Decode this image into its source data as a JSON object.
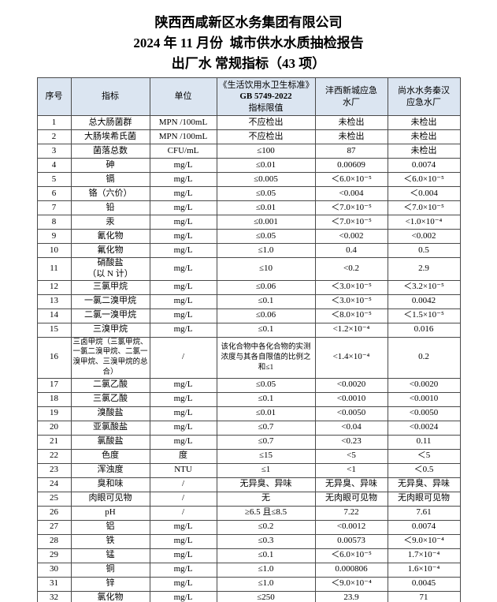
{
  "title": {
    "line1": "陕西西咸新区水务集团有限公司",
    "line2": "2024 年 11 月份  城市供水水质抽检报告",
    "line3": "出厂水 常规指标（43 项）"
  },
  "table": {
    "headers": {
      "no": "序号",
      "indicator": "指标",
      "unit": "单位",
      "limit_part1": "《生活饮用水卫生标准》",
      "limit_part2": "GB 5749-2022",
      "limit_part3": "指标限值",
      "plant1": "沣西新城应急\n水厂",
      "plant2": "尚水水务秦汉\n应急水厂"
    },
    "rows": [
      {
        "no": "1",
        "indicator": "总大肠菌群",
        "unit": "MPN /100mL",
        "limit": "不应检出",
        "v1": "未检出",
        "v2": "未检出"
      },
      {
        "no": "2",
        "indicator": "大肠埃希氏菌",
        "unit": "MPN /100mL",
        "limit": "不应检出",
        "v1": "未检出",
        "v2": "未检出"
      },
      {
        "no": "3",
        "indicator": "菌落总数",
        "unit": "CFU/mL",
        "limit": "≤100",
        "v1": "87",
        "v2": "未检出"
      },
      {
        "no": "4",
        "indicator": "砷",
        "unit": "mg/L",
        "limit": "≤0.01",
        "v1": "0.00609",
        "v2": "0.0074"
      },
      {
        "no": "5",
        "indicator": "镉",
        "unit": "mg/L",
        "limit": "≤0.005",
        "v1": "＜6.0×10⁻⁵",
        "v2": "＜6.0×10⁻⁵"
      },
      {
        "no": "6",
        "indicator": "铬（六价）",
        "unit": "mg/L",
        "limit": "≤0.05",
        "v1": "<0.004",
        "v2": "＜0.004"
      },
      {
        "no": "7",
        "indicator": "铅",
        "unit": "mg/L",
        "limit": "≤0.01",
        "v1": "＜7.0×10⁻⁵",
        "v2": "＜7.0×10⁻⁵"
      },
      {
        "no": "8",
        "indicator": "汞",
        "unit": "mg/L",
        "limit": "≤0.001",
        "v1": "＜7.0×10⁻⁵",
        "v2": "<1.0×10⁻⁴"
      },
      {
        "no": "9",
        "indicator": "氰化物",
        "unit": "mg/L",
        "limit": "≤0.05",
        "v1": "<0.002",
        "v2": "<0.002"
      },
      {
        "no": "10",
        "indicator": "氟化物",
        "unit": "mg/L",
        "limit": "≤1.0",
        "v1": "0.4",
        "v2": "0.5"
      },
      {
        "no": "11",
        "indicator": "硝酸盐\n（以 N 计）",
        "unit": "mg/L",
        "limit": "≤10",
        "v1": "<0.2",
        "v2": "2.9"
      },
      {
        "no": "12",
        "indicator": "三氯甲烷",
        "unit": "mg/L",
        "limit": "≤0.06",
        "v1": "＜3.0×10⁻⁵",
        "v2": "＜3.2×10⁻⁵"
      },
      {
        "no": "13",
        "indicator": "一氯二溴甲烷",
        "unit": "mg/L",
        "limit": "≤0.1",
        "v1": "＜3.0×10⁻⁵",
        "v2": "0.0042"
      },
      {
        "no": "14",
        "indicator": "二氯一溴甲烷",
        "unit": "mg/L",
        "limit": "≤0.06",
        "v1": "＜8.0×10⁻⁵",
        "v2": "＜1.5×10⁻⁵"
      },
      {
        "no": "15",
        "indicator": "三溴甲烷",
        "unit": "mg/L",
        "limit": "≤0.1",
        "v1": "<1.2×10⁻⁴",
        "v2": "0.016"
      },
      {
        "no": "16",
        "indicator": "三卤甲烷（三氯甲烷、一氯二溴甲烷、二氯一溴甲烷、三溴甲烷的总合）",
        "unit": "/",
        "limit": "该化合物中各化合物的实测浓度与其各自限值的比例之和≤1",
        "v1": "<1.4×10⁻⁴",
        "v2": "0.2"
      },
      {
        "no": "17",
        "indicator": "二氯乙酸",
        "unit": "mg/L",
        "limit": "≤0.05",
        "v1": "<0.0020",
        "v2": "<0.0020"
      },
      {
        "no": "18",
        "indicator": "三氯乙酸",
        "unit": "mg/L",
        "limit": "≤0.1",
        "v1": "<0.0010",
        "v2": "<0.0010"
      },
      {
        "no": "19",
        "indicator": "溴酸盐",
        "unit": "mg/L",
        "limit": "≤0.01",
        "v1": "<0.0050",
        "v2": "<0.0050"
      },
      {
        "no": "20",
        "indicator": "亚氯酸盐",
        "unit": "mg/L",
        "limit": "≤0.7",
        "v1": "<0.04",
        "v2": "<0.0024"
      },
      {
        "no": "21",
        "indicator": "氯酸盐",
        "unit": "mg/L",
        "limit": "≤0.7",
        "v1": "<0.23",
        "v2": "0.11"
      },
      {
        "no": "22",
        "indicator": "色度",
        "unit": "度",
        "limit": "≤15",
        "v1": "<5",
        "v2": "＜5"
      },
      {
        "no": "23",
        "indicator": "浑浊度",
        "unit": "NTU",
        "limit": "≤1",
        "v1": "<1",
        "v2": "＜0.5"
      },
      {
        "no": "24",
        "indicator": "臭和味",
        "unit": "/",
        "limit": "无异臭、异味",
        "v1": "无异臭、异味",
        "v2": "无异臭、异味"
      },
      {
        "no": "25",
        "indicator": "肉眼可见物",
        "unit": "/",
        "limit": "无",
        "v1": "无肉眼可见物",
        "v2": "无肉眼可见物"
      },
      {
        "no": "26",
        "indicator": "pH",
        "unit": "/",
        "limit": "≥6.5 且≤8.5",
        "v1": "7.22",
        "v2": "7.61"
      },
      {
        "no": "27",
        "indicator": "铝",
        "unit": "mg/L",
        "limit": "≤0.2",
        "v1": "<0.0012",
        "v2": "0.0074"
      },
      {
        "no": "28",
        "indicator": "铁",
        "unit": "mg/L",
        "limit": "≤0.3",
        "v1": "0.00573",
        "v2": "＜9.0×10⁻⁴"
      },
      {
        "no": "29",
        "indicator": "锰",
        "unit": "mg/L",
        "limit": "≤0.1",
        "v1": "＜6.0×10⁻⁵",
        "v2": "1.7×10⁻⁴"
      },
      {
        "no": "30",
        "indicator": "铜",
        "unit": "mg/L",
        "limit": "≤1.0",
        "v1": "0.000806",
        "v2": "1.6×10⁻⁴"
      },
      {
        "no": "31",
        "indicator": "锌",
        "unit": "mg/L",
        "limit": "≤1.0",
        "v1": "＜9.0×10⁻⁴",
        "v2": "0.0045"
      },
      {
        "no": "32",
        "indicator": "氯化物",
        "unit": "mg/L",
        "limit": "≤250",
        "v1": "23.9",
        "v2": "71"
      }
    ]
  }
}
